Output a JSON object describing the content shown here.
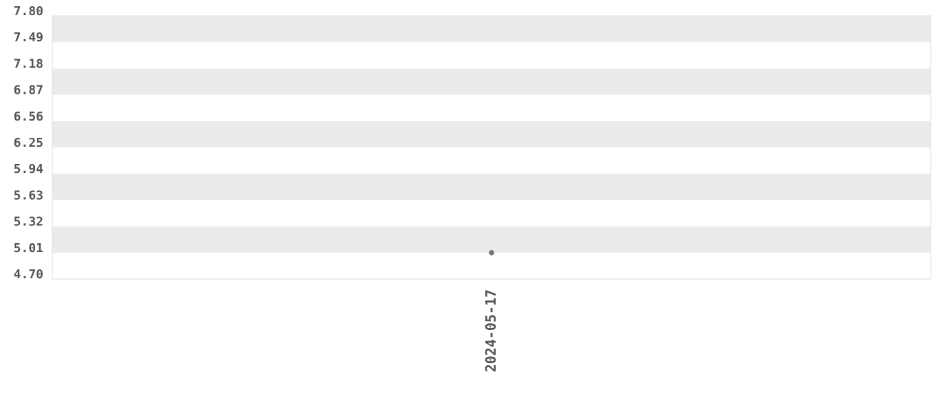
{
  "chart_data": {
    "type": "scatter",
    "title": "",
    "xlabel": "",
    "ylabel": "",
    "x_categories": [
      "2024-05-17"
    ],
    "series": [
      {
        "points": [
          {
            "x": "2024-05-17",
            "y": 5.01
          }
        ]
      }
    ],
    "ylim": [
      4.7,
      7.8
    ],
    "y_ticks": [
      "4.70",
      "5.01",
      "5.32",
      "5.63",
      "5.94",
      "6.25",
      "6.56",
      "6.87",
      "7.18",
      "7.49",
      "7.80"
    ],
    "grid": "alternating horizontal bands",
    "legend": "none",
    "colors": {
      "band": "#ebebeb",
      "point": "#777777",
      "text": "#555555",
      "border": "#dddddd"
    }
  }
}
